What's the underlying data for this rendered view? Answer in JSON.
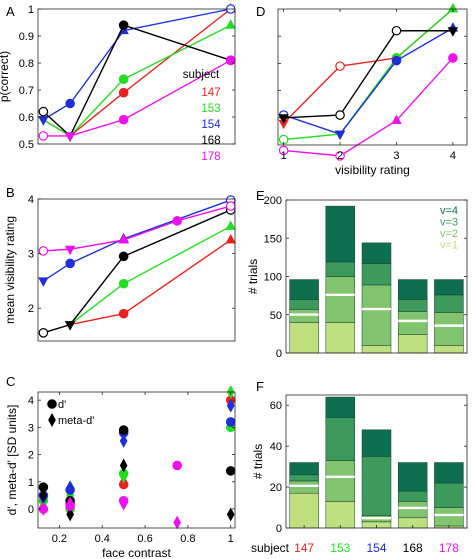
{
  "colors": {
    "s147": "#e8231f",
    "s153": "#22dd22",
    "s154": "#1f2fd6",
    "s168": "#000000",
    "s178": "#ee11ee",
    "axis": "#262626",
    "v1": "#bfe07e",
    "v2": "#80c46d",
    "v3": "#3b9a5c",
    "v4": "#0d6e50"
  },
  "subjects": [
    "147",
    "153",
    "154",
    "168",
    "178"
  ],
  "chart_data": [
    {
      "id": "A",
      "panel_label": "A",
      "type": "line",
      "xlabel": "",
      "ylabel": "p(correct)",
      "x": [
        0.125,
        0.25,
        0.5,
        1
      ],
      "xlim": [
        0.1,
        1.02
      ],
      "ylim": [
        0.5,
        1
      ],
      "yticks": [
        "0.5",
        "0.6",
        "0.7",
        "0.8",
        "0.9",
        "1"
      ],
      "ytick_values": [
        0.5,
        0.6,
        0.7,
        0.8,
        0.9,
        1
      ],
      "xticks": [],
      "xtick_labels": [],
      "legend_title": "subject",
      "legend_labels": [
        "147",
        "153",
        "154",
        "168",
        "178"
      ],
      "series": [
        {
          "name": "147",
          "values": [
            0.59,
            0.53,
            0.69,
            1.0
          ]
        },
        {
          "name": "153",
          "values": [
            0.59,
            0.53,
            0.74,
            0.94
          ]
        },
        {
          "name": "154",
          "values": [
            0.59,
            0.65,
            0.92,
            1.0
          ]
        },
        {
          "name": "168",
          "values": [
            0.62,
            0.53,
            0.94,
            0.81
          ]
        },
        {
          "name": "178",
          "values": [
            0.53,
            0.53,
            0.59,
            0.81
          ]
        }
      ]
    },
    {
      "id": "B",
      "panel_label": "B",
      "type": "line",
      "xlabel": "",
      "ylabel": "mean visibility rating",
      "x": [
        0.125,
        0.25,
        0.5,
        0.75,
        1
      ],
      "xlim": [
        0.1,
        1.02
      ],
      "ylim": [
        1.4,
        4
      ],
      "yticks": [
        "2",
        "3",
        "4"
      ],
      "ytick_values": [
        2,
        3,
        4
      ],
      "xticks": [],
      "xtick_labels": [],
      "series": [
        {
          "name": "147",
          "values": [
            null,
            1.7,
            1.9,
            null,
            3.25
          ]
        },
        {
          "name": "153",
          "values": [
            null,
            1.7,
            2.45,
            null,
            3.5
          ]
        },
        {
          "name": "154",
          "values": [
            2.5,
            2.82,
            3.27,
            null,
            3.98
          ]
        },
        {
          "name": "168",
          "values": [
            1.55,
            1.7,
            2.95,
            null,
            3.8
          ]
        },
        {
          "name": "178",
          "values": [
            3.05,
            3.08,
            3.25,
            3.6,
            3.87
          ]
        }
      ]
    },
    {
      "id": "C",
      "panel_label": "C",
      "type": "scatter",
      "xlabel": "face contrast",
      "ylabel": "d', meta-d' [SD units]",
      "xlim": [
        0.1,
        1.02
      ],
      "ylim": [
        -0.7,
        4.3
      ],
      "yticks": [
        "0",
        "1",
        "2",
        "3",
        "4"
      ],
      "ytick_values": [
        0,
        1,
        2,
        3,
        4
      ],
      "xtick_values": [
        0.2,
        0.4,
        0.6,
        0.8,
        1
      ],
      "xtick_labels": [
        "0.2",
        "0.4",
        "0.6",
        "0.8",
        "1"
      ],
      "legend_labels": [
        "d'",
        "meta-d'"
      ],
      "series": [
        {
          "name": "147",
          "dprime": [
            [
              0.125,
              0.5
            ],
            [
              0.25,
              0.2
            ],
            [
              0.5,
              0.9
            ],
            [
              1,
              4.0
            ]
          ],
          "meta": [
            [
              0.125,
              0.3
            ],
            [
              0.25,
              0.25
            ],
            [
              0.5,
              1.0
            ],
            [
              1,
              3.8
            ]
          ]
        },
        {
          "name": "153",
          "dprime": [
            [
              0.125,
              0.3
            ],
            [
              0.25,
              0.0
            ],
            [
              0.5,
              1.3
            ],
            [
              1,
              3.0
            ]
          ],
          "meta": [
            [
              0.125,
              0.1
            ],
            [
              0.25,
              0.5
            ],
            [
              0.5,
              1.2
            ],
            [
              1,
              4.3
            ]
          ]
        },
        {
          "name": "154",
          "dprime": [
            [
              0.125,
              0.5
            ],
            [
              0.25,
              0.7
            ],
            [
              0.5,
              2.8
            ],
            [
              1,
              3.2
            ]
          ],
          "meta": [
            [
              0.125,
              0.4
            ],
            [
              0.25,
              0.8
            ],
            [
              0.5,
              2.5
            ],
            [
              1,
              3.8
            ]
          ]
        },
        {
          "name": "168",
          "dprime": [
            [
              0.125,
              0.8
            ],
            [
              0.25,
              0.3
            ],
            [
              0.5,
              2.9
            ],
            [
              1,
              1.4
            ]
          ],
          "meta": [
            [
              0.125,
              0.5
            ],
            [
              0.25,
              -0.2
            ],
            [
              0.5,
              1.6
            ],
            [
              1,
              -0.2
            ]
          ]
        },
        {
          "name": "178",
          "dprime": [
            [
              0.125,
              0.0
            ],
            [
              0.25,
              0.1
            ],
            [
              0.5,
              0.3
            ],
            [
              0.75,
              1.6
            ]
          ],
          "meta": [
            [
              0.125,
              0.0
            ],
            [
              0.25,
              0.2
            ],
            [
              0.5,
              0.2
            ],
            [
              0.75,
              -0.5
            ]
          ]
        }
      ]
    },
    {
      "id": "D",
      "panel_label": "D",
      "type": "line",
      "xlabel": "visibility rating",
      "ylabel": "",
      "x": [
        1,
        2,
        3,
        4
      ],
      "xlim": [
        0.9,
        4.25
      ],
      "ylim": [
        0.5,
        1
      ],
      "xticks": [
        "1",
        "2",
        "3",
        "4"
      ],
      "xtick_values": [
        1,
        2,
        3,
        4
      ],
      "series": [
        {
          "name": "147",
          "values": [
            0.58,
            0.79,
            0.82,
            1.0
          ]
        },
        {
          "name": "153",
          "values": [
            0.52,
            0.54,
            0.82,
            1.0
          ]
        },
        {
          "name": "154",
          "values": [
            0.61,
            0.54,
            0.81,
            0.93
          ]
        },
        {
          "name": "168",
          "values": [
            0.6,
            0.61,
            0.92,
            0.92
          ]
        },
        {
          "name": "178",
          "values": [
            0.48,
            0.46,
            0.59,
            0.82
          ]
        }
      ]
    },
    {
      "id": "E",
      "panel_label": "E",
      "type": "bar",
      "stacked": true,
      "xlabel": "",
      "ylabel": "# trials",
      "categories": [
        "147",
        "153",
        "154",
        "168",
        "178"
      ],
      "ylim": [
        0,
        200
      ],
      "yticks": [
        "0",
        "50",
        "100",
        "150",
        "200"
      ],
      "ytick_values": [
        0,
        50,
        100,
        150,
        200
      ],
      "legend_labels": [
        "v=4",
        "v=3",
        "v=2",
        "v=1"
      ],
      "series": [
        {
          "name": "v=1",
          "values": [
            40,
            40,
            10,
            24,
            10
          ]
        },
        {
          "name": "v=2",
          "values": [
            17,
            60,
            79,
            30,
            43
          ]
        },
        {
          "name": "v=3",
          "values": [
            13,
            19,
            28,
            16,
            23
          ]
        },
        {
          "name": "v=4",
          "values": [
            26,
            73,
            27,
            26,
            20
          ]
        }
      ]
    },
    {
      "id": "F",
      "panel_label": "F",
      "type": "bar",
      "stacked": true,
      "xlabel": "subject",
      "ylabel": "# trials",
      "categories": [
        "147",
        "153",
        "154",
        "168",
        "178"
      ],
      "ylim": [
        0,
        65
      ],
      "yticks": [
        "0",
        "20",
        "40",
        "60"
      ],
      "ytick_values": [
        0,
        20,
        40,
        60
      ],
      "series": [
        {
          "name": "v=1",
          "values": [
            17,
            13,
            3,
            5,
            1
          ]
        },
        {
          "name": "v=2",
          "values": [
            6,
            20,
            3,
            8,
            9
          ]
        },
        {
          "name": "v=3",
          "values": [
            3,
            21,
            29,
            5,
            12
          ]
        },
        {
          "name": "v=4",
          "values": [
            6,
            10,
            13,
            14,
            10
          ]
        }
      ]
    }
  ]
}
